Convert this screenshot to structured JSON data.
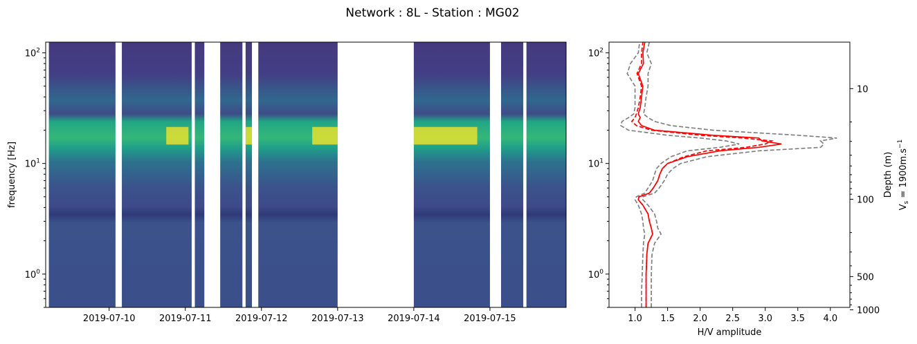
{
  "title": "Network : 8L - Station : MG02",
  "chart_data": [
    {
      "type": "heatmap",
      "ylabel": "frequency [Hz]",
      "yscale": "log",
      "ylim": [
        0.5,
        125
      ],
      "y_tick_labels": [
        {
          "value": 1,
          "base": "10",
          "exp": "0"
        },
        {
          "value": 10,
          "base": "10",
          "exp": "1"
        },
        {
          "value": 100,
          "base": "10",
          "exp": "2"
        }
      ],
      "xlim": [
        "2019-07-09 04:00",
        "2019-07-16 00:00"
      ],
      "x_tick_labels": [
        "2019-07-10",
        "2019-07-11",
        "2019-07-12",
        "2019-07-13",
        "2019-07-14",
        "2019-07-15"
      ],
      "data_segments": [
        [
          "2019-07-09 05:00",
          "2019-07-10 02:00"
        ],
        [
          "2019-07-10 04:00",
          "2019-07-11 02:00"
        ],
        [
          "2019-07-11 03:00",
          "2019-07-11 06:00"
        ],
        [
          "2019-07-11 11:00",
          "2019-07-11 18:00"
        ],
        [
          "2019-07-11 19:00",
          "2019-07-11 21:00"
        ],
        [
          "2019-07-11 23:00",
          "2019-07-13 00:00"
        ],
        [
          "2019-07-14 00:00",
          "2019-07-15 00:00"
        ],
        [
          "2019-07-15 03:30",
          "2019-07-15 10:30"
        ],
        [
          "2019-07-15 11:30",
          "2019-07-16 00:00"
        ]
      ],
      "peak_band_hz": [
        14,
        22
      ],
      "colormap": "viridis",
      "colors": {
        "low": "#3b4a8c",
        "mid": "#21a685",
        "high": "#fde725"
      }
    },
    {
      "type": "line",
      "xlabel": "H/V amplitude",
      "xlim": [
        0.6,
        4.3
      ],
      "x_tick_labels": [
        "1.0",
        "1.5",
        "2.0",
        "2.5",
        "3.0",
        "3.5",
        "4.0"
      ],
      "ylabel_right": "Depth (m)",
      "ylabel_right2_parts": {
        "prefix": "V",
        "sub": "s",
        "middle": " = 1900m.s",
        "sup": "−1"
      },
      "yscale": "log",
      "ylim": [
        0.5,
        125
      ],
      "y_tick_labels": [
        {
          "value": 1,
          "base": "10",
          "exp": "0"
        },
        {
          "value": 10,
          "base": "10",
          "exp": "1"
        },
        {
          "value": 100,
          "base": "10",
          "exp": "2"
        }
      ],
      "depth_tick_labels": [
        "10",
        "100",
        "500",
        "1000"
      ],
      "freq": [
        0.5,
        0.7,
        1.0,
        1.5,
        1.9,
        2.3,
        2.6,
        3.0,
        3.5,
        4.2,
        4.7,
        5.0,
        5.4,
        6.0,
        7.0,
        8.0,
        9.0,
        10.0,
        11.5,
        13.0,
        14.0,
        15.0,
        16.0,
        17.0,
        18.0,
        20.0,
        22.0,
        24.0,
        26.0,
        28.0,
        32.0,
        40.0,
        50.0,
        65.0,
        80.0,
        100.0,
        125.0
      ],
      "series": [
        {
          "values": [
            1.17,
            1.17,
            1.17,
            1.18,
            1.2,
            1.27,
            1.25,
            1.22,
            1.2,
            1.12,
            1.05,
            1.06,
            1.22,
            1.28,
            1.35,
            1.38,
            1.42,
            1.5,
            1.8,
            2.3,
            2.9,
            3.25,
            2.95,
            2.9,
            2.2,
            1.3,
            1.1,
            1.05,
            1.08,
            1.05,
            1.08,
            1.1,
            1.12,
            1.05,
            1.13,
            1.12,
            1.15
          ],
          "color": "#ff0000",
          "dash": "solid"
        },
        {
          "values": [
            1.17,
            1.17,
            1.17,
            1.18,
            1.2,
            1.27,
            1.25,
            1.22,
            1.2,
            1.12,
            1.05,
            1.06,
            1.22,
            1.28,
            1.35,
            1.38,
            1.42,
            1.5,
            1.75,
            2.1,
            2.7,
            3.0,
            3.1,
            2.65,
            2.0,
            1.25,
            1.02,
            0.95,
            1.0,
            1.02,
            1.05,
            1.08,
            1.1,
            1.03,
            1.1,
            1.1,
            1.12
          ],
          "color": "#ff0000",
          "dash": "dashed"
        },
        {
          "values": [
            1.1,
            1.1,
            1.11,
            1.12,
            1.13,
            1.15,
            1.13,
            1.12,
            1.1,
            1.05,
            1.0,
            1.02,
            1.15,
            1.2,
            1.27,
            1.3,
            1.33,
            1.4,
            1.55,
            1.8,
            2.3,
            2.6,
            2.4,
            2.0,
            1.5,
            0.9,
            0.78,
            0.8,
            0.9,
            0.98,
            1.0,
            1.0,
            1.0,
            0.88,
            0.93,
            1.05,
            1.07
          ],
          "color": "#808080",
          "dash": "dashed"
        },
        {
          "values": [
            1.25,
            1.25,
            1.25,
            1.26,
            1.3,
            1.4,
            1.35,
            1.33,
            1.3,
            1.2,
            1.12,
            1.12,
            1.3,
            1.37,
            1.45,
            1.5,
            1.58,
            1.7,
            2.1,
            2.9,
            3.85,
            3.9,
            3.85,
            4.1,
            3.5,
            2.2,
            1.55,
            1.3,
            1.2,
            1.13,
            1.15,
            1.17,
            1.2,
            1.2,
            1.25,
            1.18,
            1.22
          ],
          "color": "#808080",
          "dash": "dashed"
        }
      ]
    }
  ]
}
